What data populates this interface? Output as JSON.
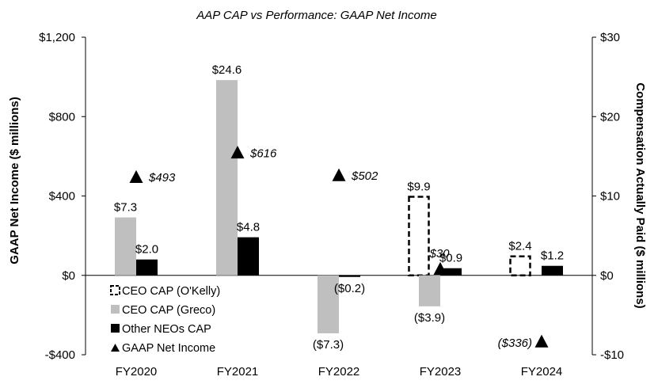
{
  "chart_data": {
    "type": "bar",
    "title": "AAP CAP vs Performance: GAAP Net Income",
    "ylabel_left": "GAAP Net Income ($ millions)",
    "ylabel_right": "Compensation Actually Paid ($ millions)",
    "ylim_left": [
      -400,
      1200
    ],
    "ylim_right": [
      -10,
      30
    ],
    "left_ticks": [
      {
        "value": 1200,
        "label": "$1,200"
      },
      {
        "value": 800,
        "label": "$800"
      },
      {
        "value": 400,
        "label": "$400"
      },
      {
        "value": 0,
        "label": "$0"
      },
      {
        "value": -400,
        "label": "-$400"
      }
    ],
    "right_ticks": [
      {
        "value": 30,
        "label": "$30"
      },
      {
        "value": 20,
        "label": "$20"
      },
      {
        "value": 10,
        "label": "$10"
      },
      {
        "value": 0,
        "label": "$0"
      },
      {
        "value": -10,
        "label": "-$10"
      }
    ],
    "categories": [
      "FY2020",
      "FY2021",
      "FY2022",
      "FY2023",
      "FY2024"
    ],
    "series": [
      {
        "name": "CEO CAP (O'Kelly)",
        "axis": "right",
        "style": "dashed-outline",
        "color": "#000000",
        "values": [
          null,
          null,
          null,
          9.9,
          2.4
        ],
        "labels": [
          null,
          null,
          null,
          "$9.9",
          "$2.4"
        ]
      },
      {
        "name": "CEO CAP (Greco)",
        "axis": "right",
        "style": "solid",
        "color": "#bfbfbf",
        "values": [
          7.3,
          24.6,
          -7.3,
          -3.9,
          null
        ],
        "labels": [
          "$7.3",
          "$24.6",
          "($7.3)",
          "($3.9)",
          null
        ]
      },
      {
        "name": "Other NEOs CAP",
        "axis": "right",
        "style": "solid",
        "color": "#000000",
        "values": [
          2.0,
          4.8,
          -0.2,
          0.9,
          1.2
        ],
        "labels": [
          "$2.0",
          "$4.8",
          "($0.2)",
          "$0.9",
          "$1.2"
        ]
      },
      {
        "name": "GAAP Net Income",
        "axis": "left",
        "style": "triangle-marker",
        "color": "#000000",
        "values": [
          493,
          616,
          502,
          30,
          -336
        ],
        "labels": [
          "$493",
          "$616",
          "$502",
          "$30",
          "($336)"
        ]
      }
    ],
    "legend_position": "bottom-left"
  }
}
